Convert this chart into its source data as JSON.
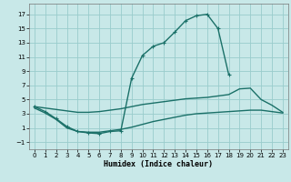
{
  "bg_color": "#c8e8e8",
  "grid_color": "#99cccc",
  "line_color": "#1a7068",
  "xlabel": "Humidex (Indice chaleur)",
  "xlim": [
    -0.5,
    23.5
  ],
  "ylim": [
    -2.0,
    18.5
  ],
  "xticks": [
    0,
    1,
    2,
    3,
    4,
    5,
    6,
    7,
    8,
    9,
    10,
    11,
    12,
    13,
    14,
    15,
    16,
    17,
    18,
    19,
    20,
    21,
    22,
    23
  ],
  "yticks": [
    -1,
    1,
    3,
    5,
    7,
    9,
    11,
    13,
    15,
    17
  ],
  "upper_x": [
    0,
    1,
    2,
    3,
    4,
    5,
    6,
    7,
    8,
    9,
    10,
    11,
    12,
    13,
    14,
    15,
    16,
    17,
    18
  ],
  "upper_y": [
    4.0,
    3.3,
    2.3,
    1.2,
    0.5,
    0.3,
    0.2,
    0.5,
    0.6,
    8.0,
    11.2,
    12.5,
    13.0,
    14.5,
    16.1,
    16.8,
    17.0,
    15.0,
    8.5
  ],
  "mid_x": [
    0,
    1,
    2,
    3,
    4,
    5,
    6,
    7,
    8,
    9,
    10,
    11,
    12,
    13,
    14,
    15,
    16,
    17,
    18,
    19,
    20,
    21,
    22,
    23
  ],
  "mid_y": [
    4.0,
    3.8,
    3.6,
    3.4,
    3.2,
    3.2,
    3.3,
    3.5,
    3.7,
    4.0,
    4.3,
    4.5,
    4.7,
    4.9,
    5.1,
    5.2,
    5.3,
    5.5,
    5.7,
    6.5,
    6.6,
    5.0,
    4.2,
    3.2
  ],
  "low_x": [
    0,
    1,
    2,
    3,
    4,
    5,
    6,
    7,
    8,
    9,
    10,
    11,
    12,
    13,
    14,
    15,
    16,
    17,
    18,
    19,
    20,
    21,
    22,
    23
  ],
  "low_y": [
    3.8,
    3.1,
    2.2,
    1.0,
    0.5,
    0.4,
    0.4,
    0.6,
    0.8,
    1.1,
    1.5,
    1.9,
    2.2,
    2.5,
    2.8,
    3.0,
    3.1,
    3.2,
    3.3,
    3.4,
    3.5,
    3.5,
    3.3,
    3.1
  ],
  "xlabel_fontsize": 6,
  "tick_fontsize": 5,
  "linewidth": 1.0,
  "marker_size": 3.5
}
